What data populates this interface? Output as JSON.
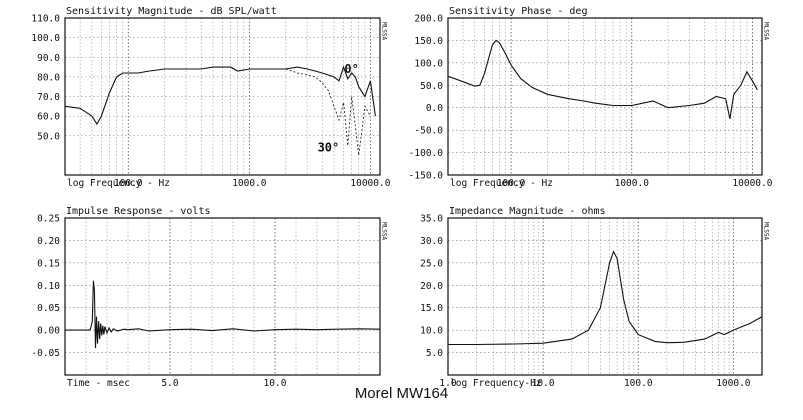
{
  "caption": "Morel MW164",
  "chart_data": [
    {
      "type": "line",
      "title": "Sensitivity Magnitude - dB SPL/watt",
      "xlabel": "log Frequency - Hz",
      "side_mark": "MLSSA",
      "xscale": "log",
      "xlim": [
        30,
        12000
      ],
      "ylim": [
        30,
        110
      ],
      "grid": true,
      "x_tick_labels": [
        {
          "v": 100,
          "t": "100.0"
        },
        {
          "v": 1000,
          "t": "1000.0"
        },
        {
          "v": 10000,
          "t": "10000.0"
        }
      ],
      "y_tick_labels": [
        {
          "v": 110,
          "t": "110.0"
        },
        {
          "v": 100,
          "t": "100.0"
        },
        {
          "v": 90,
          "t": "90.0"
        },
        {
          "v": 80,
          "t": "80.0"
        },
        {
          "v": 70,
          "t": "70.0"
        },
        {
          "v": 60,
          "t": "60.0"
        },
        {
          "v": 50,
          "t": "50.0"
        }
      ],
      "annotations": [
        {
          "text": "0°",
          "x": 7000,
          "y": 82
        },
        {
          "text": "30°",
          "x": 4500,
          "y": 42
        }
      ],
      "series": [
        {
          "dash": false,
          "x": [
            30,
            40,
            50,
            55,
            60,
            70,
            80,
            90,
            100,
            120,
            150,
            200,
            300,
            400,
            500,
            700,
            800,
            1000,
            1500,
            2000,
            2500,
            3000,
            3500,
            4000,
            5000,
            5500,
            6000,
            6500,
            7000,
            7500,
            8000,
            9000,
            10000,
            11000
          ],
          "y": [
            65,
            64,
            60,
            56,
            60,
            72,
            80,
            82,
            82,
            82,
            83,
            84,
            84,
            84,
            85,
            85,
            83,
            84,
            84,
            84,
            85,
            84,
            83,
            82,
            80,
            78,
            85,
            79,
            82,
            80,
            75,
            70,
            78,
            60
          ]
        },
        {
          "dash": true,
          "x": [
            2000,
            2500,
            3000,
            3500,
            4000,
            4500,
            5000,
            5500,
            6000,
            6500,
            7000,
            7500,
            8000,
            9000,
            10000
          ],
          "y": [
            84,
            82,
            81,
            80,
            77,
            73,
            65,
            58,
            67,
            45,
            70,
            55,
            40,
            65,
            60
          ]
        }
      ]
    },
    {
      "type": "line",
      "title": "Sensitivity Phase - deg",
      "xlabel": "log Frequency - Hz",
      "side_mark": "MLSSA",
      "xscale": "log",
      "xlim": [
        30,
        12000
      ],
      "ylim": [
        -150,
        200
      ],
      "grid": true,
      "x_tick_labels": [
        {
          "v": 100,
          "t": "100.0"
        },
        {
          "v": 1000,
          "t": "1000.0"
        },
        {
          "v": 10000,
          "t": "10000.0"
        }
      ],
      "y_tick_labels": [
        {
          "v": 200,
          "t": "200.0"
        },
        {
          "v": 150,
          "t": "150.0"
        },
        {
          "v": 100,
          "t": "100.0"
        },
        {
          "v": 50,
          "t": "50.0"
        },
        {
          "v": 0,
          "t": "0.0"
        },
        {
          "v": -50,
          "t": "-50.0"
        },
        {
          "v": -100,
          "t": "-100.0"
        },
        {
          "v": -150,
          "t": "-150.0"
        }
      ],
      "annotations": [],
      "series": [
        {
          "dash": false,
          "x": [
            30,
            40,
            50,
            55,
            60,
            70,
            75,
            80,
            90,
            100,
            120,
            150,
            200,
            300,
            400,
            500,
            700,
            1000,
            1500,
            2000,
            3000,
            4000,
            5000,
            6000,
            6500,
            7000,
            8000,
            9000,
            10000,
            11000
          ],
          "y": [
            70,
            58,
            48,
            50,
            75,
            140,
            150,
            145,
            120,
            95,
            65,
            45,
            30,
            20,
            15,
            10,
            5,
            5,
            15,
            0,
            5,
            10,
            25,
            20,
            -25,
            30,
            50,
            80,
            60,
            40
          ]
        }
      ]
    },
    {
      "type": "line",
      "title": "Impulse Response - volts",
      "xlabel": "Time - msec",
      "side_mark": "MLSSA",
      "xscale": "linear",
      "xlim": [
        0,
        15
      ],
      "ylim": [
        -0.1,
        0.25
      ],
      "grid": true,
      "x_tick_labels": [
        {
          "v": 5,
          "t": "5.0"
        },
        {
          "v": 10,
          "t": "10.0"
        }
      ],
      "y_tick_labels": [
        {
          "v": 0.25,
          "t": "0.25"
        },
        {
          "v": 0.2,
          "t": "0.20"
        },
        {
          "v": 0.15,
          "t": "0.15"
        },
        {
          "v": 0.1,
          "t": "0.10"
        },
        {
          "v": 0.05,
          "t": "0.05"
        },
        {
          "v": 0.0,
          "t": "0.00"
        },
        {
          "v": -0.05,
          "t": "-0.05"
        }
      ],
      "annotations": [],
      "series": [
        {
          "dash": false,
          "x": [
            0,
            0.5,
            1.0,
            1.2,
            1.3,
            1.35,
            1.4,
            1.45,
            1.5,
            1.55,
            1.6,
            1.65,
            1.7,
            1.75,
            1.8,
            1.85,
            1.9,
            2.0,
            2.1,
            2.2,
            2.3,
            2.5,
            2.8,
            3.0,
            3.5,
            4,
            5,
            6,
            7,
            8,
            9,
            10,
            11,
            12,
            13,
            14,
            15
          ],
          "y": [
            0,
            0,
            0,
            0,
            0.02,
            0.11,
            0.09,
            -0.04,
            0.03,
            -0.03,
            0.02,
            -0.02,
            0.015,
            -0.012,
            0.01,
            -0.01,
            0.008,
            -0.006,
            0.005,
            -0.004,
            0.003,
            -0.002,
            0.002,
            0.001,
            0.003,
            -0.002,
            0.001,
            0.002,
            -0.001,
            0.003,
            -0.002,
            0.001,
            0.002,
            0.001,
            0.002,
            0.003,
            0.002
          ]
        }
      ]
    },
    {
      "type": "line",
      "title": "Impedance Magnitude - ohms",
      "xlabel": "log Frequency-Hz",
      "side_mark": "MLSSA",
      "xscale": "log",
      "xlim": [
        1,
        2000
      ],
      "ylim": [
        0,
        35
      ],
      "grid": true,
      "x_tick_labels": [
        {
          "v": 1,
          "t": "1.0"
        },
        {
          "v": 10,
          "t": "10.0"
        },
        {
          "v": 100,
          "t": "100.0"
        },
        {
          "v": 1000,
          "t": "1000.0"
        }
      ],
      "y_tick_labels": [
        {
          "v": 35,
          "t": "35.0"
        },
        {
          "v": 30,
          "t": "30.0"
        },
        {
          "v": 25,
          "t": "25.0"
        },
        {
          "v": 20,
          "t": "20.0"
        },
        {
          "v": 15,
          "t": "15.0"
        },
        {
          "v": 10,
          "t": "10.0"
        },
        {
          "v": 5,
          "t": "5.0"
        }
      ],
      "annotations": [],
      "series": [
        {
          "dash": false,
          "x": [
            1,
            2,
            5,
            10,
            20,
            30,
            40,
            50,
            55,
            60,
            70,
            80,
            100,
            150,
            200,
            300,
            500,
            700,
            800,
            1000,
            1500,
            2000
          ],
          "y": [
            6.8,
            6.8,
            6.9,
            7.1,
            8.0,
            10.0,
            15.0,
            25.0,
            27.5,
            26.0,
            17.0,
            12.0,
            9.0,
            7.5,
            7.2,
            7.3,
            8.0,
            9.5,
            9.0,
            10.0,
            11.5,
            13.0
          ]
        }
      ]
    }
  ]
}
